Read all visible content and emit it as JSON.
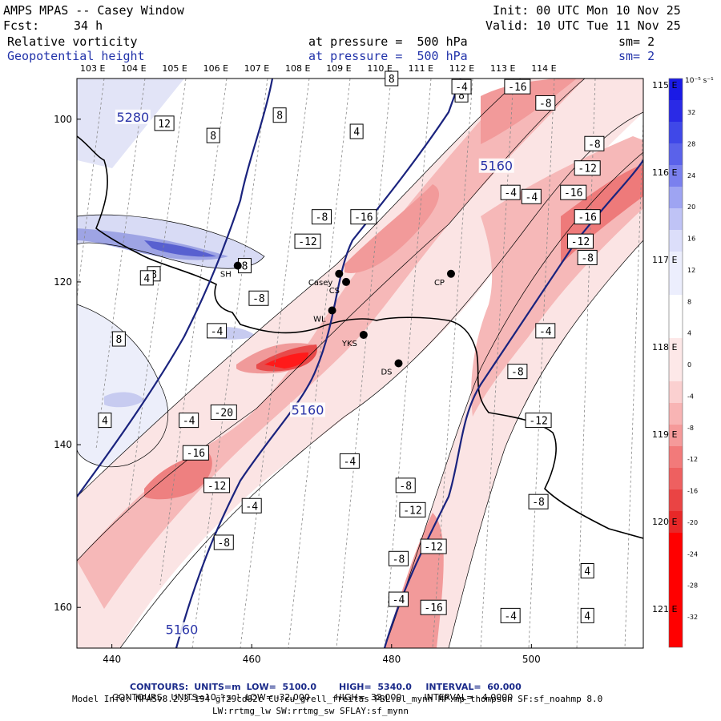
{
  "header": {
    "title": "AMPS MPAS -- Casey Window",
    "init": "Init: 00 UTC Mon 10 Nov 25",
    "fcst_label": "Fcst:",
    "fcst_value": "34 h",
    "valid": "Valid: 10 UTC Tue 11 Nov 25",
    "field1_name": "Relative vorticity",
    "field1_level": "at pressure =  500 hPa",
    "field1_sm": "sm= 2",
    "field2_name": "Geopotential height",
    "field2_level": "at pressure =  500 hPa",
    "field2_sm": "sm= 2"
  },
  "chart_data": {
    "type": "heatmap",
    "title": "Relative vorticity (shaded) and geopotential height (contours) at 500 hPa",
    "x_ticks": [
      440,
      460,
      480,
      500
    ],
    "xlim": [
      435,
      516
    ],
    "y_ticks": [
      100,
      120,
      140,
      160
    ],
    "ylim": [
      95,
      165
    ],
    "top_longitude_labels": [
      "103 E",
      "104 E",
      "105 E",
      "106 E",
      "107 E",
      "108 E",
      "109 E",
      "110 E",
      "111 E",
      "112 E",
      "113 E",
      "114 E"
    ],
    "right_longitude_labels": [
      "115 E",
      "116 E",
      "117 E",
      "118 E",
      "119 E",
      "120 E",
      "121 E"
    ],
    "colorbar": {
      "units": "10⁻⁵ s⁻¹",
      "ticks": [
        "32",
        "28",
        "24",
        "20",
        "16",
        "12",
        "8",
        "4",
        "0",
        "-4",
        "-8",
        "-12",
        "-16",
        "-20",
        "-24",
        "-28",
        "-32"
      ]
    },
    "height_contours": {
      "units": "m",
      "low": 5100.0,
      "high": 5340.0,
      "interval": 60.0,
      "labels": [
        {
          "value": "5280",
          "x": 443,
          "y": 100
        },
        {
          "value": "5160",
          "x": 468,
          "y": 136
        },
        {
          "value": "5160",
          "x": 450,
          "y": 163
        },
        {
          "value": "5160",
          "x": 495,
          "y": 106
        }
      ]
    },
    "vorticity_contours": {
      "units": "10^-5 s^-1",
      "low": -32.0,
      "high": 32.0,
      "interval": 4.0,
      "labels": [
        {
          "value": "8",
          "x": 454.5,
          "y": 102
        },
        {
          "value": "8",
          "x": 464,
          "y": 99.5
        },
        {
          "value": "8",
          "x": 459,
          "y": 118
        },
        {
          "value": "8",
          "x": 441,
          "y": 127
        },
        {
          "value": "8",
          "x": 446,
          "y": 119
        },
        {
          "value": "12",
          "x": 447.5,
          "y": 100.5
        },
        {
          "value": "4",
          "x": 445,
          "y": 119.5
        },
        {
          "value": "4",
          "x": 439,
          "y": 137
        },
        {
          "value": "4",
          "x": 475,
          "y": 101.5
        },
        {
          "value": "8",
          "x": 480,
          "y": 95
        },
        {
          "value": "8",
          "x": 490,
          "y": 97
        },
        {
          "value": "-4",
          "x": 490,
          "y": 96
        },
        {
          "value": "-16",
          "x": 498,
          "y": 96
        },
        {
          "value": "-8",
          "x": 502,
          "y": 98
        },
        {
          "value": "-8",
          "x": 509,
          "y": 103
        },
        {
          "value": "-12",
          "x": 508,
          "y": 106
        },
        {
          "value": "-16",
          "x": 506,
          "y": 109
        },
        {
          "value": "-16",
          "x": 508,
          "y": 112
        },
        {
          "value": "-12",
          "x": 507,
          "y": 115
        },
        {
          "value": "-8",
          "x": 508,
          "y": 117
        },
        {
          "value": "-4",
          "x": 497,
          "y": 109
        },
        {
          "value": "-4",
          "x": 500,
          "y": 109.5
        },
        {
          "value": "-8",
          "x": 470,
          "y": 112
        },
        {
          "value": "-16",
          "x": 476,
          "y": 112
        },
        {
          "value": "-12",
          "x": 468,
          "y": 115
        },
        {
          "value": "-8",
          "x": 461,
          "y": 122
        },
        {
          "value": "-4",
          "x": 455,
          "y": 126
        },
        {
          "value": "-4",
          "x": 451,
          "y": 137
        },
        {
          "value": "-20",
          "x": 456,
          "y": 136
        },
        {
          "value": "-16",
          "x": 452,
          "y": 141
        },
        {
          "value": "-12",
          "x": 455,
          "y": 145
        },
        {
          "value": "-4",
          "x": 460,
          "y": 147.5
        },
        {
          "value": "-8",
          "x": 456,
          "y": 152
        },
        {
          "value": "-4",
          "x": 474,
          "y": 142
        },
        {
          "value": "-4",
          "x": 502,
          "y": 126
        },
        {
          "value": "-8",
          "x": 498,
          "y": 131
        },
        {
          "value": "-12",
          "x": 501,
          "y": 137
        },
        {
          "value": "-8",
          "x": 501,
          "y": 147
        },
        {
          "value": "-8",
          "x": 482,
          "y": 145
        },
        {
          "value": "-12",
          "x": 483,
          "y": 148
        },
        {
          "value": "-12",
          "x": 486,
          "y": 152.5
        },
        {
          "value": "-8",
          "x": 481,
          "y": 154
        },
        {
          "value": "-4",
          "x": 481,
          "y": 159
        },
        {
          "value": "-16",
          "x": 486,
          "y": 160
        },
        {
          "value": "-4",
          "x": 497,
          "y": 161
        },
        {
          "value": "4",
          "x": 508,
          "y": 155.5
        },
        {
          "value": "4",
          "x": 508,
          "y": 161
        }
      ]
    },
    "stations": [
      {
        "name": "SH",
        "x": 458,
        "y": 118
      },
      {
        "name": "Casey",
        "x": 472.5,
        "y": 119
      },
      {
        "name": "CS",
        "x": 473.5,
        "y": 120
      },
      {
        "name": "CP",
        "x": 488.5,
        "y": 119
      },
      {
        "name": "WL",
        "x": 471.5,
        "y": 123.5
      },
      {
        "name": "YKS",
        "x": 476,
        "y": 126.5
      },
      {
        "name": "DS",
        "x": 481,
        "y": 130
      }
    ]
  },
  "footer": {
    "line1_label1": "CONTOURS:",
    "line1_units": "UNITS=m",
    "line1_low": "LOW=  5100.0",
    "line1_high": "HIGH=  5340.0",
    "line1_interval": "INTERVAL=  60.000",
    "line2_label": "CONTOURS:",
    "line2_units": "UNITS=10⁻⁵ s⁻¹",
    "line2_low": "LOW= -32.000",
    "line2_high": "HIGH=  32.000",
    "line2_interval": "INTERVAL=   4.0000",
    "model_info": "Model Info: MPASv8.2.3-194-gf29cd82c CU:cu_grell_freitas PBL:bl_mynn MP:mp_thompson SF:sf_noahmp 8.0",
    "model_info2": "LW:rrtmg_lw SW:rrtmg_sw SFLAY:sf_mynn"
  },
  "colors": {
    "positive_vort": "#3f48c8",
    "negative_vort": "#e83838",
    "height_contour": "#1a237e"
  }
}
